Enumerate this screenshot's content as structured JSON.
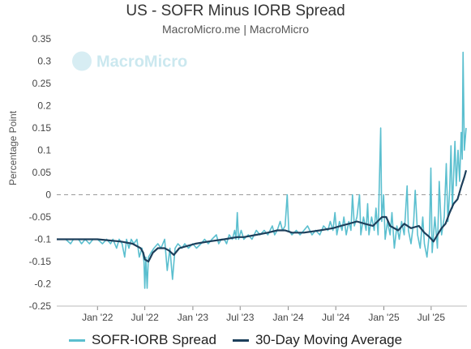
{
  "colors": {
    "spread": "#5bbfcf",
    "moving_average": "#1d3f5b",
    "zero_line": "#9a9a9a",
    "watermark": "#c6e6ee"
  },
  "watermark": "MacroMicro",
  "chart_data": {
    "type": "line",
    "title": "US - SOFR Minus IORB Spread",
    "subtitle": "MacroMicro.me | MacroMicro",
    "ylabel": "Percentage Point",
    "xlabel": "",
    "ylim": [
      -0.25,
      0.35
    ],
    "yticks": [
      0.35,
      0.3,
      0.25,
      0.2,
      0.15,
      0.1,
      0.05,
      0,
      -0.05,
      -0.1,
      -0.15,
      -0.2,
      -0.25
    ],
    "ytick_labels": [
      "0.35",
      "0.3",
      "0.25",
      "0.2",
      "0.15",
      "0.1",
      "0.05",
      "0",
      "-0.05",
      "-0.1",
      "-0.15",
      "-0.2",
      "-0.25"
    ],
    "xlim": [
      "2021-07-29",
      "2025-11-15"
    ],
    "xticks": [
      "2022-01-01",
      "2022-07-01",
      "2023-01-01",
      "2023-07-01",
      "2024-01-01",
      "2024-07-01",
      "2025-01-01",
      "2025-07-01"
    ],
    "xtick_labels": [
      "Jan '22",
      "Jul '22",
      "Jan '23",
      "Jul '23",
      "Jan '24",
      "Jul '24",
      "Jan '25",
      "Jul '25"
    ],
    "reference_line": 0,
    "legend_position": "bottom",
    "series": [
      {
        "name": "SOFR-IORB Spread",
        "points": [
          [
            "2021-07-29",
            -0.1
          ],
          [
            "2021-09-01",
            -0.1
          ],
          [
            "2021-09-20",
            -0.11
          ],
          [
            "2021-10-01",
            -0.1
          ],
          [
            "2021-10-20",
            -0.1
          ],
          [
            "2021-11-01",
            -0.11
          ],
          [
            "2021-11-15",
            -0.1
          ],
          [
            "2021-12-01",
            -0.11
          ],
          [
            "2021-12-15",
            -0.1
          ],
          [
            "2022-01-01",
            -0.1
          ],
          [
            "2022-01-20",
            -0.11
          ],
          [
            "2022-02-05",
            -0.1
          ],
          [
            "2022-02-20",
            -0.11
          ],
          [
            "2022-03-01",
            -0.1
          ],
          [
            "2022-03-15",
            -0.12
          ],
          [
            "2022-03-25",
            -0.1
          ],
          [
            "2022-04-05",
            -0.11
          ],
          [
            "2022-04-15",
            -0.14
          ],
          [
            "2022-04-22",
            -0.1
          ],
          [
            "2022-05-01",
            -0.12
          ],
          [
            "2022-05-10",
            -0.1
          ],
          [
            "2022-05-20",
            -0.11
          ],
          [
            "2022-06-01",
            -0.1
          ],
          [
            "2022-06-10",
            -0.14
          ],
          [
            "2022-06-20",
            -0.12
          ],
          [
            "2022-06-28",
            -0.15
          ],
          [
            "2022-07-01",
            -0.21
          ],
          [
            "2022-07-05",
            -0.14
          ],
          [
            "2022-07-10",
            -0.21
          ],
          [
            "2022-07-15",
            -0.14
          ],
          [
            "2022-07-25",
            -0.13
          ],
          [
            "2022-08-05",
            -0.12
          ],
          [
            "2022-08-20",
            -0.11
          ],
          [
            "2022-09-01",
            -0.12
          ],
          [
            "2022-09-15",
            -0.1
          ],
          [
            "2022-09-25",
            -0.17
          ],
          [
            "2022-10-05",
            -0.12
          ],
          [
            "2022-10-15",
            -0.19
          ],
          [
            "2022-10-25",
            -0.12
          ],
          [
            "2022-11-05",
            -0.11
          ],
          [
            "2022-11-20",
            -0.12
          ],
          [
            "2022-12-01",
            -0.11
          ],
          [
            "2022-12-15",
            -0.12
          ],
          [
            "2023-01-01",
            -0.11
          ],
          [
            "2023-01-15",
            -0.12
          ],
          [
            "2023-02-01",
            -0.11
          ],
          [
            "2023-02-15",
            -0.1
          ],
          [
            "2023-03-01",
            -0.11
          ],
          [
            "2023-03-15",
            -0.1
          ],
          [
            "2023-04-01",
            -0.09
          ],
          [
            "2023-04-10",
            -0.11
          ],
          [
            "2023-04-20",
            -0.1
          ],
          [
            "2023-05-01",
            -0.1
          ],
          [
            "2023-05-10",
            -0.11
          ],
          [
            "2023-05-20",
            -0.09
          ],
          [
            "2023-06-01",
            -0.1
          ],
          [
            "2023-06-10",
            -0.08
          ],
          [
            "2023-06-15",
            -0.1
          ],
          [
            "2023-06-20",
            -0.04
          ],
          [
            "2023-06-25",
            -0.1
          ],
          [
            "2023-07-05",
            -0.08
          ],
          [
            "2023-07-15",
            -0.1
          ],
          [
            "2023-08-01",
            -0.09
          ],
          [
            "2023-08-15",
            -0.1
          ],
          [
            "2023-09-01",
            -0.08
          ],
          [
            "2023-09-15",
            -0.09
          ],
          [
            "2023-10-01",
            -0.08
          ],
          [
            "2023-10-15",
            -0.09
          ],
          [
            "2023-11-01",
            -0.07
          ],
          [
            "2023-11-10",
            -0.09
          ],
          [
            "2023-11-20",
            -0.08
          ],
          [
            "2023-12-01",
            -0.06
          ],
          [
            "2023-12-10",
            -0.08
          ],
          [
            "2023-12-20",
            -0.07
          ],
          [
            "2023-12-28",
            0.0
          ],
          [
            "2024-01-03",
            -0.08
          ],
          [
            "2024-01-15",
            -0.09
          ],
          [
            "2024-02-01",
            -0.08
          ],
          [
            "2024-02-15",
            -0.09
          ],
          [
            "2024-03-01",
            -0.08
          ],
          [
            "2024-03-15",
            -0.07
          ],
          [
            "2024-04-01",
            -0.09
          ],
          [
            "2024-04-15",
            -0.08
          ],
          [
            "2024-05-01",
            -0.09
          ],
          [
            "2024-05-15",
            -0.07
          ],
          [
            "2024-06-01",
            -0.08
          ],
          [
            "2024-06-10",
            -0.06
          ],
          [
            "2024-06-20",
            -0.08
          ],
          [
            "2024-06-28",
            -0.04
          ],
          [
            "2024-07-05",
            -0.09
          ],
          [
            "2024-07-15",
            -0.06
          ],
          [
            "2024-07-25",
            -0.08
          ],
          [
            "2024-08-01",
            -0.05
          ],
          [
            "2024-08-10",
            -0.09
          ],
          [
            "2024-08-20",
            -0.06
          ],
          [
            "2024-08-28",
            -0.08
          ],
          [
            "2024-09-03",
            0.0
          ],
          [
            "2024-09-10",
            -0.07
          ],
          [
            "2024-09-20",
            -0.05
          ],
          [
            "2024-09-30",
            0.0
          ],
          [
            "2024-10-05",
            -0.09
          ],
          [
            "2024-10-15",
            -0.05
          ],
          [
            "2024-10-25",
            -0.08
          ],
          [
            "2024-10-31",
            -0.02
          ],
          [
            "2024-11-05",
            -0.09
          ],
          [
            "2024-11-15",
            -0.05
          ],
          [
            "2024-11-25",
            -0.08
          ],
          [
            "2024-12-02",
            -0.03
          ],
          [
            "2024-12-10",
            -0.09
          ],
          [
            "2024-12-20",
            0.15
          ],
          [
            "2024-12-24",
            -0.06
          ],
          [
            "2024-12-31",
            0.0
          ],
          [
            "2025-01-06",
            -0.1
          ],
          [
            "2025-01-15",
            -0.06
          ],
          [
            "2025-01-25",
            -0.09
          ],
          [
            "2025-02-01",
            -0.04
          ],
          [
            "2025-02-10",
            -0.12
          ],
          [
            "2025-02-20",
            -0.07
          ],
          [
            "2025-03-01",
            -0.1
          ],
          [
            "2025-03-10",
            -0.06
          ],
          [
            "2025-03-20",
            -0.09
          ],
          [
            "2025-03-31",
            0.02
          ],
          [
            "2025-04-05",
            -0.08
          ],
          [
            "2025-04-15",
            -0.11
          ],
          [
            "2025-04-25",
            -0.06
          ],
          [
            "2025-05-01",
            0.01
          ],
          [
            "2025-05-10",
            -0.09
          ],
          [
            "2025-05-20",
            -0.12
          ],
          [
            "2025-05-30",
            -0.05
          ],
          [
            "2025-06-05",
            -0.11
          ],
          [
            "2025-06-15",
            -0.14
          ],
          [
            "2025-06-25",
            -0.08
          ],
          [
            "2025-06-30",
            0.06
          ],
          [
            "2025-07-05",
            -0.13
          ],
          [
            "2025-07-15",
            -0.05
          ],
          [
            "2025-07-25",
            -0.12
          ],
          [
            "2025-08-01",
            0.03
          ],
          [
            "2025-08-10",
            -0.09
          ],
          [
            "2025-08-20",
            -0.05
          ],
          [
            "2025-08-28",
            0.07
          ],
          [
            "2025-09-03",
            -0.06
          ],
          [
            "2025-09-10",
            0.01
          ],
          [
            "2025-09-15",
            0.11
          ],
          [
            "2025-09-20",
            -0.03
          ],
          [
            "2025-09-30",
            0.12
          ],
          [
            "2025-10-05",
            0.02
          ],
          [
            "2025-10-12",
            0.1
          ],
          [
            "2025-10-18",
            0.03
          ],
          [
            "2025-10-24",
            0.14
          ],
          [
            "2025-10-28",
            0.08
          ],
          [
            "2025-10-31",
            0.32
          ],
          [
            "2025-11-05",
            0.1
          ],
          [
            "2025-11-12",
            0.15
          ]
        ]
      },
      {
        "name": "30-Day Moving Average",
        "points": [
          [
            "2021-07-29",
            -0.1
          ],
          [
            "2021-10-01",
            -0.1
          ],
          [
            "2022-01-01",
            -0.1
          ],
          [
            "2022-04-01",
            -0.105
          ],
          [
            "2022-05-15",
            -0.11
          ],
          [
            "2022-06-15",
            -0.12
          ],
          [
            "2022-06-25",
            -0.13
          ],
          [
            "2022-07-01",
            -0.145
          ],
          [
            "2022-07-15",
            -0.15
          ],
          [
            "2022-08-01",
            -0.13
          ],
          [
            "2022-08-20",
            -0.12
          ],
          [
            "2022-09-15",
            -0.12
          ],
          [
            "2022-10-01",
            -0.125
          ],
          [
            "2022-10-20",
            -0.135
          ],
          [
            "2022-11-10",
            -0.12
          ],
          [
            "2022-12-10",
            -0.115
          ],
          [
            "2023-01-10",
            -0.11
          ],
          [
            "2023-03-01",
            -0.105
          ],
          [
            "2023-05-01",
            -0.1
          ],
          [
            "2023-06-20",
            -0.095
          ],
          [
            "2023-07-15",
            -0.095
          ],
          [
            "2023-09-01",
            -0.09
          ],
          [
            "2023-10-15",
            -0.085
          ],
          [
            "2023-11-20",
            -0.08
          ],
          [
            "2023-12-20",
            -0.08
          ],
          [
            "2024-01-15",
            -0.085
          ],
          [
            "2024-03-01",
            -0.085
          ],
          [
            "2024-05-01",
            -0.08
          ],
          [
            "2024-06-20",
            -0.075
          ],
          [
            "2024-07-20",
            -0.07
          ],
          [
            "2024-08-20",
            -0.065
          ],
          [
            "2024-09-20",
            -0.06
          ],
          [
            "2024-10-20",
            -0.065
          ],
          [
            "2024-11-20",
            -0.07
          ],
          [
            "2024-12-25",
            -0.05
          ],
          [
            "2025-01-10",
            -0.05
          ],
          [
            "2025-01-25",
            -0.07
          ],
          [
            "2025-02-25",
            -0.08
          ],
          [
            "2025-03-20",
            -0.065
          ],
          [
            "2025-04-15",
            -0.075
          ],
          [
            "2025-05-15",
            -0.07
          ],
          [
            "2025-06-05",
            -0.085
          ],
          [
            "2025-06-25",
            -0.095
          ],
          [
            "2025-07-10",
            -0.105
          ],
          [
            "2025-07-25",
            -0.09
          ],
          [
            "2025-08-10",
            -0.075
          ],
          [
            "2025-08-25",
            -0.065
          ],
          [
            "2025-09-10",
            -0.04
          ],
          [
            "2025-09-25",
            -0.02
          ],
          [
            "2025-10-10",
            -0.01
          ],
          [
            "2025-10-25",
            0.02
          ],
          [
            "2025-11-05",
            0.04
          ],
          [
            "2025-11-12",
            0.055
          ]
        ]
      }
    ]
  }
}
